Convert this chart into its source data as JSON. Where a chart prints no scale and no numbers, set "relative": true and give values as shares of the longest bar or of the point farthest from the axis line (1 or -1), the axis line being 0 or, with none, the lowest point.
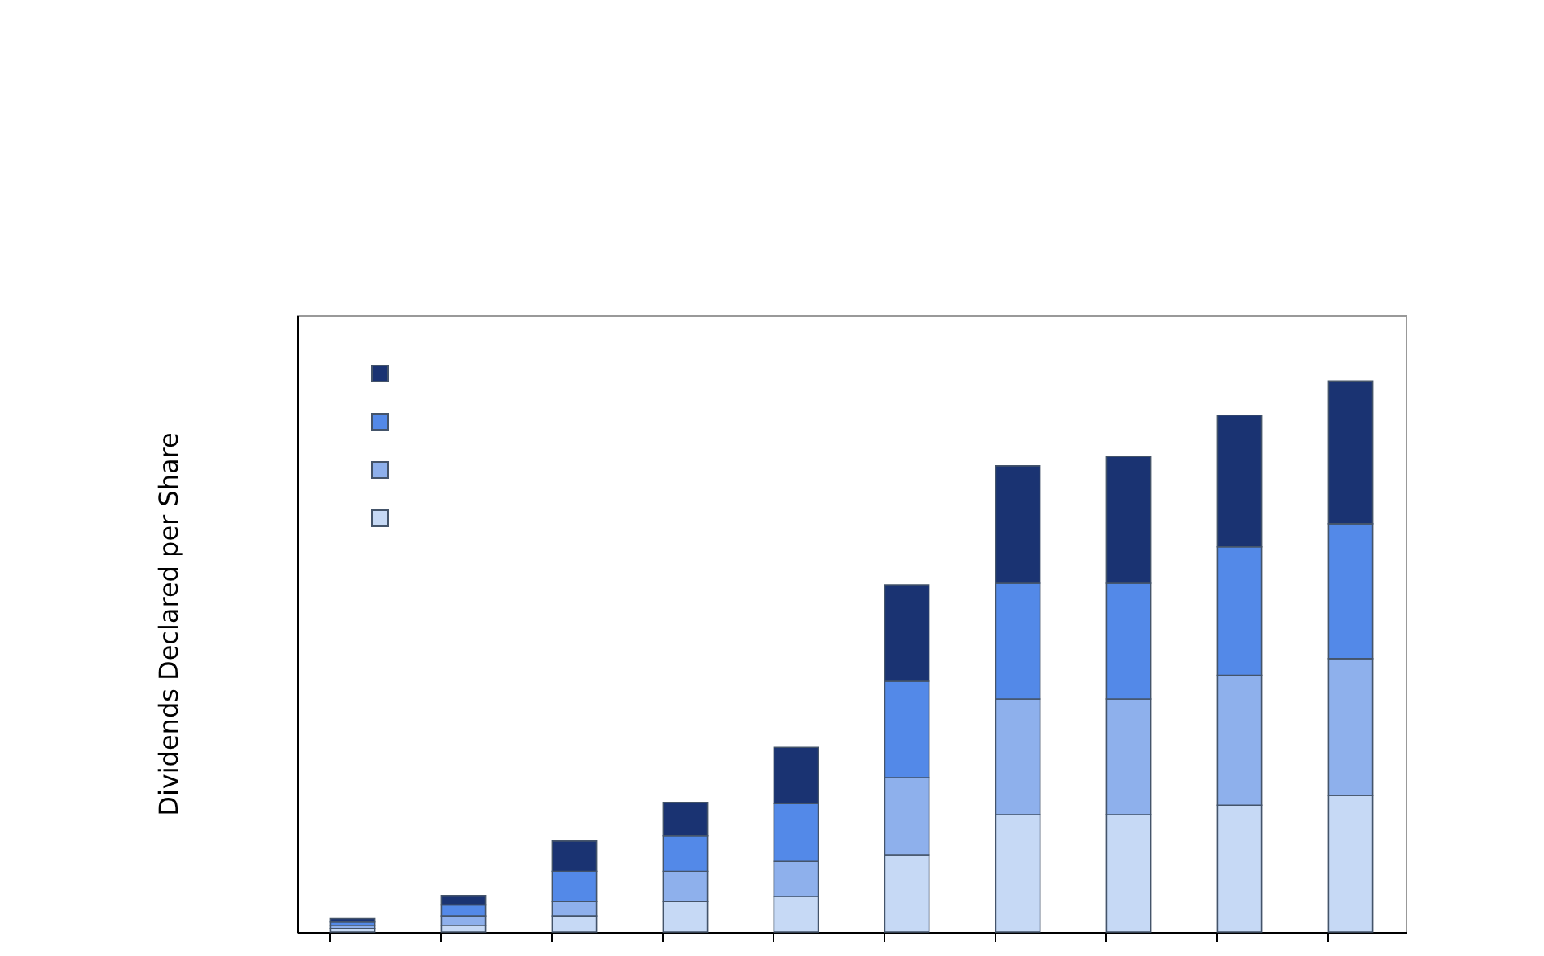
{
  "chart_data": {
    "type": "bar",
    "stacked": true,
    "relative": true,
    "ylabel": "Dividends Declared per Share",
    "categories": [
      null,
      null,
      null,
      null,
      null,
      null,
      null,
      null,
      null,
      null
    ],
    "grid": false,
    "series": [
      {
        "color": "#c6d9f5",
        "values": [
          0.006,
          0.012,
          0.029,
          0.055,
          0.064,
          0.14,
          0.213,
          0.213,
          0.23,
          0.248
        ]
      },
      {
        "color": "#8eb0ec",
        "values": [
          0.006,
          0.017,
          0.026,
          0.055,
          0.064,
          0.14,
          0.21,
          0.21,
          0.236,
          0.248
        ]
      },
      {
        "color": "#5389e8",
        "values": [
          0.006,
          0.02,
          0.055,
          0.064,
          0.105,
          0.175,
          0.21,
          0.21,
          0.233,
          0.245
        ]
      },
      {
        "color": "#1a3372",
        "values": [
          0.006,
          0.017,
          0.055,
          0.061,
          0.102,
          0.175,
          0.213,
          0.23,
          0.239,
          0.259
        ]
      }
    ]
  }
}
